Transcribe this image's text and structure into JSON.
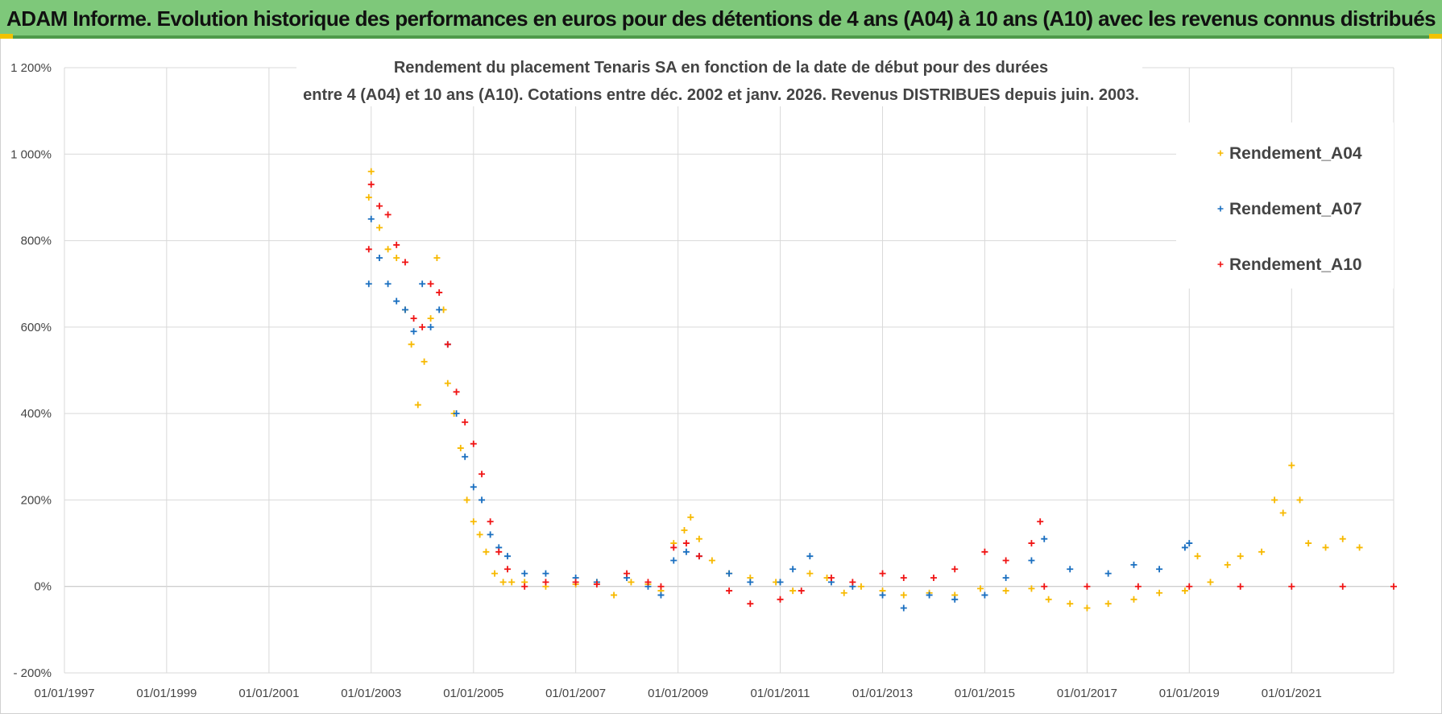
{
  "banner": {
    "text": "ADAM Informe. Evolution historique des performances en euros pour des détentions de 4 ans (A04) à 10 ans (A10) avec les revenus connus distribués"
  },
  "colors": {
    "banner_bg": "#7ec87a",
    "A04": "#f7b900",
    "A07": "#1a6fc0",
    "A10": "#f01414"
  },
  "chart_data": {
    "type": "scatter",
    "title_line1": "Rendement du placement Tenaris SA en fonction de la date de début pour des durées",
    "title_line2": "entre 4 (A04) et 10 ans (A10).  Cotations entre déc. 2002 et janv. 2026. Revenus DISTRIBUES depuis juin. 2003.",
    "xlabel": "",
    "ylabel": "",
    "x_range": [
      "1997-01-01",
      "2022-12-31"
    ],
    "x_ticks": [
      "01/01/1997",
      "01/01/1999",
      "01/01/2001",
      "01/01/2003",
      "01/01/2005",
      "01/01/2007",
      "01/01/2009",
      "01/01/2011",
      "01/01/2013",
      "01/01/2015",
      "01/01/2017",
      "01/01/2019",
      "01/01/2021"
    ],
    "y_range": [
      -200,
      1200
    ],
    "y_ticks": [
      -200,
      0,
      200,
      400,
      600,
      800,
      1000,
      1200
    ],
    "y_tick_labels": [
      "- 200%",
      "0%",
      "200%",
      "400%",
      "600%",
      "800%",
      "1 000%",
      "1 200%"
    ],
    "grid": true,
    "legend_position": "top-right",
    "marker": "+",
    "series": [
      {
        "name": "Rendement_A04",
        "color": "#f7b900",
        "points": [
          [
            "2002-12-15",
            900
          ],
          [
            "2003-01-01",
            960
          ],
          [
            "2003-03-01",
            830
          ],
          [
            "2003-05-01",
            780
          ],
          [
            "2003-07-01",
            760
          ],
          [
            "2003-09-01",
            640
          ],
          [
            "2003-10-15",
            560
          ],
          [
            "2003-12-01",
            420
          ],
          [
            "2004-01-15",
            520
          ],
          [
            "2004-03-01",
            620
          ],
          [
            "2004-04-15",
            760
          ],
          [
            "2004-06-01",
            640
          ],
          [
            "2004-07-01",
            470
          ],
          [
            "2004-08-15",
            400
          ],
          [
            "2004-10-01",
            320
          ],
          [
            "2004-11-15",
            200
          ],
          [
            "2005-01-01",
            150
          ],
          [
            "2005-02-15",
            120
          ],
          [
            "2005-04-01",
            80
          ],
          [
            "2005-06-01",
            30
          ],
          [
            "2005-08-01",
            10
          ],
          [
            "2005-10-01",
            10
          ],
          [
            "2006-01-01",
            10
          ],
          [
            "2006-06-01",
            0
          ],
          [
            "2007-01-01",
            5
          ],
          [
            "2007-06-01",
            10
          ],
          [
            "2007-10-01",
            -20
          ],
          [
            "2008-02-01",
            10
          ],
          [
            "2008-06-01",
            5
          ],
          [
            "2008-09-01",
            -10
          ],
          [
            "2008-12-01",
            100
          ],
          [
            "2009-02-15",
            130
          ],
          [
            "2009-04-01",
            160
          ],
          [
            "2009-06-01",
            110
          ],
          [
            "2009-09-01",
            60
          ],
          [
            "2010-01-01",
            30
          ],
          [
            "2010-06-01",
            20
          ],
          [
            "2010-12-01",
            10
          ],
          [
            "2011-04-01",
            -10
          ],
          [
            "2011-08-01",
            30
          ],
          [
            "2011-12-01",
            20
          ],
          [
            "2012-04-01",
            -15
          ],
          [
            "2012-08-01",
            0
          ],
          [
            "2013-01-01",
            -10
          ],
          [
            "2013-06-01",
            -20
          ],
          [
            "2013-12-01",
            -15
          ],
          [
            "2014-06-01",
            -20
          ],
          [
            "2014-12-01",
            -5
          ],
          [
            "2015-06-01",
            -10
          ],
          [
            "2015-12-01",
            -5
          ],
          [
            "2016-04-01",
            -30
          ],
          [
            "2016-09-01",
            -40
          ],
          [
            "2017-01-01",
            -50
          ],
          [
            "2017-06-01",
            -40
          ],
          [
            "2017-12-01",
            -30
          ],
          [
            "2018-06-01",
            -15
          ],
          [
            "2018-12-01",
            -10
          ],
          [
            "2019-03-01",
            70
          ],
          [
            "2019-06-01",
            10
          ],
          [
            "2019-10-01",
            50
          ],
          [
            "2020-01-01",
            70
          ],
          [
            "2020-06-01",
            80
          ],
          [
            "2020-09-01",
            200
          ],
          [
            "2020-11-01",
            170
          ],
          [
            "2021-01-01",
            280
          ],
          [
            "2021-03-01",
            200
          ],
          [
            "2021-05-01",
            100
          ],
          [
            "2021-09-01",
            90
          ],
          [
            "2022-01-01",
            110
          ],
          [
            "2022-05-01",
            90
          ]
        ]
      },
      {
        "name": "Rendement_A07",
        "color": "#1a6fc0",
        "points": [
          [
            "2002-12-15",
            700
          ],
          [
            "2003-01-01",
            850
          ],
          [
            "2003-03-01",
            760
          ],
          [
            "2003-05-01",
            700
          ],
          [
            "2003-07-01",
            660
          ],
          [
            "2003-09-01",
            640
          ],
          [
            "2003-11-01",
            590
          ],
          [
            "2004-01-01",
            700
          ],
          [
            "2004-03-01",
            600
          ],
          [
            "2004-05-01",
            640
          ],
          [
            "2004-07-01",
            560
          ],
          [
            "2004-09-01",
            400
          ],
          [
            "2004-11-01",
            300
          ],
          [
            "2005-01-01",
            230
          ],
          [
            "2005-03-01",
            200
          ],
          [
            "2005-05-01",
            120
          ],
          [
            "2005-07-01",
            90
          ],
          [
            "2005-09-01",
            70
          ],
          [
            "2006-01-01",
            30
          ],
          [
            "2006-06-01",
            30
          ],
          [
            "2007-01-01",
            20
          ],
          [
            "2007-06-01",
            10
          ],
          [
            "2008-01-01",
            20
          ],
          [
            "2008-06-01",
            0
          ],
          [
            "2008-09-01",
            -20
          ],
          [
            "2008-12-01",
            60
          ],
          [
            "2009-03-01",
            80
          ],
          [
            "2009-06-01",
            70
          ],
          [
            "2010-01-01",
            30
          ],
          [
            "2010-06-01",
            10
          ],
          [
            "2011-01-01",
            10
          ],
          [
            "2011-04-01",
            40
          ],
          [
            "2011-08-01",
            70
          ],
          [
            "2012-01-01",
            10
          ],
          [
            "2012-06-01",
            0
          ],
          [
            "2013-01-01",
            -20
          ],
          [
            "2013-06-01",
            -50
          ],
          [
            "2013-12-01",
            -20
          ],
          [
            "2014-06-01",
            -30
          ],
          [
            "2015-01-01",
            -20
          ],
          [
            "2015-06-01",
            20
          ],
          [
            "2015-12-01",
            60
          ],
          [
            "2016-03-01",
            110
          ],
          [
            "2016-09-01",
            40
          ],
          [
            "2017-06-01",
            30
          ],
          [
            "2017-12-01",
            50
          ],
          [
            "2018-06-01",
            40
          ],
          [
            "2018-12-01",
            90
          ],
          [
            "2019-01-01",
            100
          ]
        ]
      },
      {
        "name": "Rendement_A10",
        "color": "#f01414",
        "points": [
          [
            "2002-12-15",
            780
          ],
          [
            "2003-01-01",
            930
          ],
          [
            "2003-03-01",
            880
          ],
          [
            "2003-05-01",
            860
          ],
          [
            "2003-07-01",
            790
          ],
          [
            "2003-09-01",
            750
          ],
          [
            "2003-11-01",
            620
          ],
          [
            "2004-01-01",
            600
          ],
          [
            "2004-03-01",
            700
          ],
          [
            "2004-05-01",
            680
          ],
          [
            "2004-07-01",
            560
          ],
          [
            "2004-09-01",
            450
          ],
          [
            "2004-11-01",
            380
          ],
          [
            "2005-01-01",
            330
          ],
          [
            "2005-03-01",
            260
          ],
          [
            "2005-05-01",
            150
          ],
          [
            "2005-07-01",
            80
          ],
          [
            "2005-09-01",
            40
          ],
          [
            "2006-01-01",
            0
          ],
          [
            "2006-06-01",
            10
          ],
          [
            "2007-01-01",
            10
          ],
          [
            "2007-06-01",
            5
          ],
          [
            "2008-01-01",
            30
          ],
          [
            "2008-06-01",
            10
          ],
          [
            "2008-09-01",
            0
          ],
          [
            "2008-12-01",
            90
          ],
          [
            "2009-03-01",
            100
          ],
          [
            "2009-06-01",
            70
          ],
          [
            "2010-01-01",
            -10
          ],
          [
            "2010-06-01",
            -40
          ],
          [
            "2011-01-01",
            -30
          ],
          [
            "2011-06-01",
            -10
          ],
          [
            "2012-01-01",
            20
          ],
          [
            "2012-06-01",
            10
          ],
          [
            "2013-01-01",
            30
          ],
          [
            "2013-06-01",
            20
          ],
          [
            "2014-01-01",
            20
          ],
          [
            "2014-06-01",
            40
          ],
          [
            "2015-01-01",
            80
          ],
          [
            "2015-06-01",
            60
          ],
          [
            "2015-12-01",
            100
          ],
          [
            "2016-02-01",
            150
          ],
          [
            "2016-03-01",
            0
          ],
          [
            "2017-01-01",
            0
          ],
          [
            "2018-01-01",
            0
          ],
          [
            "2019-01-01",
            0
          ],
          [
            "2020-01-01",
            0
          ],
          [
            "2021-01-01",
            0
          ],
          [
            "2022-01-01",
            0
          ],
          [
            "2022-12-31",
            0
          ]
        ]
      }
    ]
  }
}
